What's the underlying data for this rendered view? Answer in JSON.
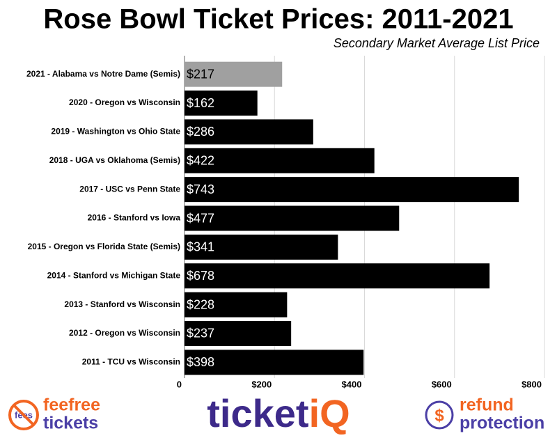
{
  "chart_data": {
    "type": "barh",
    "title": "Rose Bowl Ticket Prices: 2011-2021",
    "subtitle": "Secondary Market Average List Price",
    "categories": [
      "2021 - Alabama vs Notre Dame (Semis)",
      "2020 - Oregon vs Wisconsin",
      "2019 - Washington vs Ohio State",
      "2018 - UGA vs Oklahoma (Semis)",
      "2017 - USC vs Penn State",
      "2016 - Stanford vs Iowa",
      "2015 - Oregon vs Florida State (Semis)",
      "2014 - Stanford vs Michigan State",
      "2013 - Stanford vs Wisconsin",
      "2012 - Oregon vs Wisconsin",
      "2011 - TCU vs Wisconsin"
    ],
    "values": [
      217,
      162,
      286,
      422,
      743,
      477,
      341,
      678,
      228,
      237,
      398
    ],
    "value_labels": [
      "$217",
      "$162",
      "$286",
      "$422",
      "$743",
      "$477",
      "$341",
      "$678",
      "$228",
      "$237",
      "$398"
    ],
    "colors": [
      "#a0a0a0",
      "#000000",
      "#000000",
      "#000000",
      "#000000",
      "#000000",
      "#000000",
      "#000000",
      "#000000",
      "#000000",
      "#000000"
    ],
    "xlim": [
      0,
      800
    ],
    "xticks": [
      0,
      {
        "value": 200,
        "label": "$200"
      },
      {
        "value": 400,
        "label": "$400"
      },
      {
        "value": 600,
        "label": "$600"
      },
      {
        "value": 800,
        "label": "$800"
      }
    ],
    "grid": true
  },
  "footer": {
    "fees_icon": "fees",
    "left_top": "feefree",
    "left_bottom": "tickets",
    "brand_main": "ticket",
    "brand_end": "iQ",
    "right_top": "refund",
    "right_bottom": "protection"
  }
}
